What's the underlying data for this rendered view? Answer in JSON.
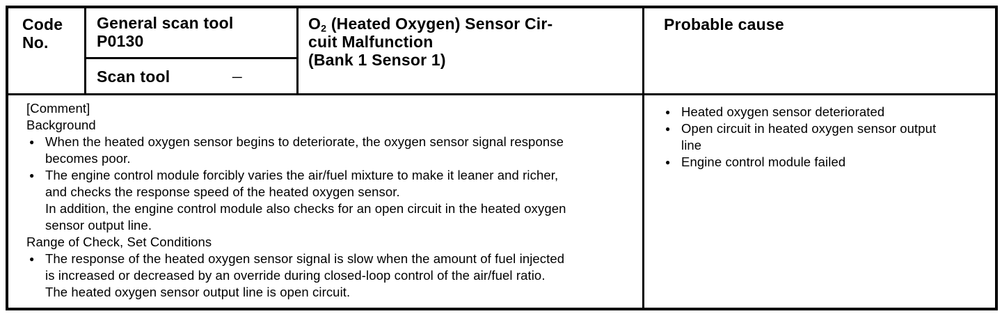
{
  "bullet_glyph": "●",
  "colors": {
    "ink": "#000000",
    "paper": "#ffffff"
  },
  "header": {
    "code_label": "Code\nNo.",
    "general_scan_tool": "General scan tool\nP0130",
    "scan_tool_label": "Scan tool",
    "scan_tool_value": "—",
    "dtc_o": "O",
    "dtc_sub": "2",
    "dtc_rest": " (Heated Oxygen) Sensor Cir-\ncuit Malfunction\n(Bank 1 Sensor 1)",
    "probable_cause_label": "Probable cause"
  },
  "comment": {
    "lines": [
      {
        "style": "plain",
        "text": "[Comment]"
      },
      {
        "style": "plain",
        "text": "Background"
      },
      {
        "style": "bullet",
        "text": "When the heated oxygen sensor begins to deteriorate, the oxygen sensor signal response\nbecomes poor."
      },
      {
        "style": "bullet",
        "text": "The engine control module forcibly varies the air/fuel mixture to make it leaner and richer,\nand checks the response speed of the heated oxygen sensor.\nIn addition, the engine control module also checks for an open circuit in the heated oxygen\nsensor output line."
      },
      {
        "style": "plain",
        "text": "Range of Check, Set Conditions"
      },
      {
        "style": "bullet",
        "text": "The response of the heated oxygen sensor signal is slow when the amount of fuel injected\nis increased or decreased by an override during closed-loop control of the air/fuel ratio.\nThe heated oxygen sensor output line is open circuit."
      }
    ]
  },
  "probable_causes": [
    {
      "style": "bullet",
      "text": "Heated oxygen sensor deteriorated"
    },
    {
      "style": "bullet",
      "text": "Open circuit in heated oxygen sensor output\nline"
    },
    {
      "style": "bullet",
      "text": "Engine control module failed"
    }
  ]
}
